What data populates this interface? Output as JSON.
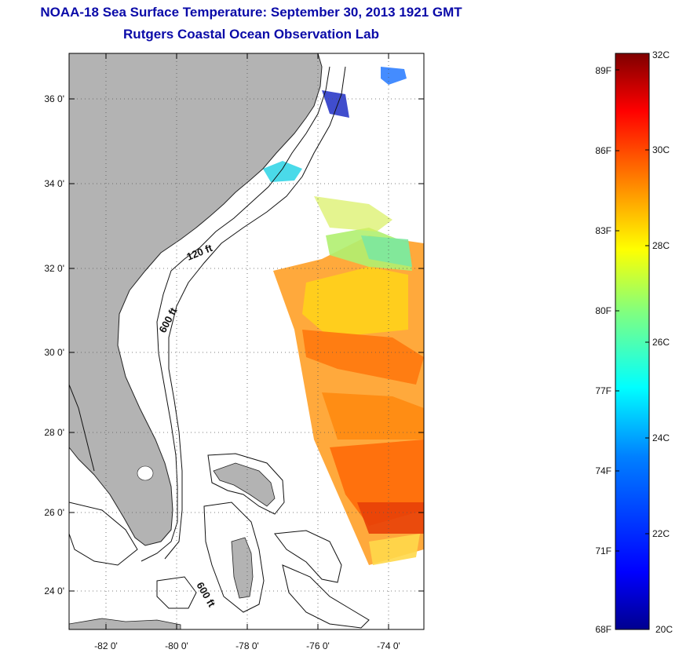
{
  "title": {
    "line1": "NOAA-18 Sea Surface Temperature:  September 30, 2013 1921 GMT",
    "line2": "Rutgers Coastal Ocean Observation Lab"
  },
  "map": {
    "lat_ticks": [
      "36 0'",
      "34 0'",
      "32 0'",
      "30 0'",
      "28 0'",
      "26 0'",
      "24 0'"
    ],
    "lon_ticks": [
      "-82 0'",
      "-80 0'",
      "-78 0'",
      "-76 0'",
      "-74 0'"
    ],
    "contour_labels": [
      "120 ft",
      "600 ft",
      "600 ft"
    ],
    "land_color": "#b3b3b3"
  },
  "colorbar": {
    "fahrenheit_labels": [
      "89F",
      "86F",
      "83F",
      "80F",
      "77F",
      "74F",
      "71F",
      "68F"
    ],
    "celsius_labels": [
      "32C",
      "30C",
      "28C",
      "26C",
      "24C",
      "22C",
      "20C"
    ],
    "colormap": [
      "#7f0000",
      "#ff0000",
      "#ff8000",
      "#ffff00",
      "#80ff80",
      "#00ffff",
      "#0080ff",
      "#0000ff",
      "#00008f"
    ]
  }
}
